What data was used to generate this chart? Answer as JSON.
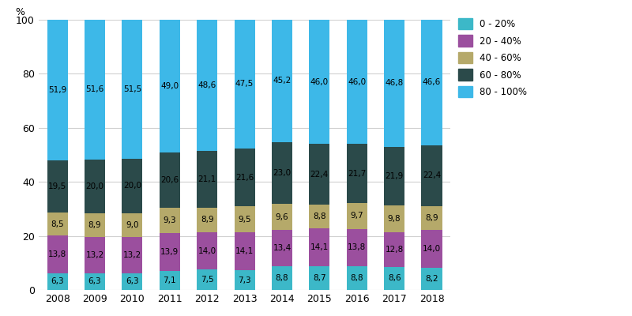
{
  "years": [
    "2008",
    "2009",
    "2010",
    "2011",
    "2012",
    "2013",
    "2014",
    "2015",
    "2016",
    "2017",
    "2018"
  ],
  "categories": [
    "0 - 20%",
    "20 - 40%",
    "40 - 60%",
    "60 - 80%",
    "80 - 100%"
  ],
  "colors": [
    "#3cb8c8",
    "#9b4f9e",
    "#b5a96a",
    "#2b4a4a",
    "#3db8e8"
  ],
  "data": {
    "0 - 20%": [
      6.3,
      6.3,
      6.3,
      7.1,
      7.5,
      7.3,
      8.8,
      8.7,
      8.8,
      8.6,
      8.2
    ],
    "20 - 40%": [
      13.8,
      13.2,
      13.2,
      13.9,
      14.0,
      14.1,
      13.4,
      14.1,
      13.8,
      12.8,
      14.0
    ],
    "40 - 60%": [
      8.5,
      8.9,
      9.0,
      9.3,
      8.9,
      9.5,
      9.6,
      8.8,
      9.7,
      9.8,
      8.9
    ],
    "60 - 80%": [
      19.5,
      20.0,
      20.0,
      20.6,
      21.1,
      21.6,
      23.0,
      22.4,
      21.7,
      21.9,
      22.4
    ],
    "80 - 100%": [
      51.9,
      51.6,
      51.5,
      49.0,
      48.6,
      47.5,
      45.2,
      46.0,
      46.0,
      46.8,
      46.6
    ]
  },
  "label_color": [
    "black",
    "black",
    "black",
    "black",
    "black"
  ],
  "ylabel": "%",
  "ylim": [
    0,
    100
  ],
  "bar_width": 0.55,
  "background_color": "#ffffff",
  "grid_color": "#d0d0d0",
  "label_fontsize": 7.5,
  "tick_fontsize": 9,
  "figsize": [
    8.0,
    4.0
  ],
  "dpi": 100
}
